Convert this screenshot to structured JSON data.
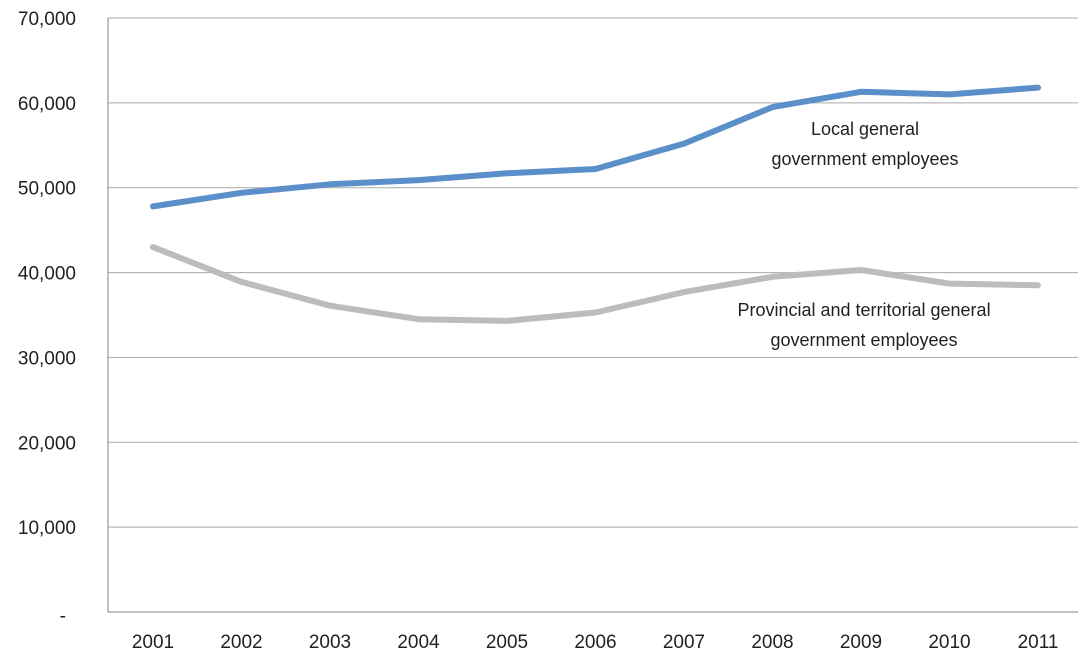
{
  "chart_data": {
    "type": "line",
    "title": "",
    "xlabel": "",
    "ylabel": "",
    "categories": [
      "2001",
      "2002",
      "2003",
      "2004",
      "2005",
      "2006",
      "2007",
      "2008",
      "2009",
      "2010",
      "2011"
    ],
    "ylim": [
      0,
      70000
    ],
    "y_ticks": [
      0,
      10000,
      20000,
      30000,
      40000,
      50000,
      60000,
      70000
    ],
    "y_tick_labels": [
      "-",
      "10,000",
      "20,000",
      "30,000",
      "40,000",
      "50,000",
      "60,000",
      "70,000"
    ],
    "grid": "horizontal",
    "legend": "none",
    "series": [
      {
        "name": "Local general government employees",
        "label_lines": [
          "Local general",
          "government employees"
        ],
        "color": "#5b8fc9",
        "values": [
          47800,
          49400,
          50400,
          50900,
          51700,
          52200,
          55200,
          59500,
          61300,
          61000,
          61800
        ]
      },
      {
        "name": "Provincial and territorial general government employees",
        "label_lines": [
          "Provincial and territorial general",
          "government employees"
        ],
        "color": "#bcbcbe",
        "values": [
          43000,
          38900,
          36100,
          34500,
          34300,
          35300,
          37700,
          39500,
          40300,
          38700,
          38500
        ]
      }
    ],
    "gridline_color": "#a7a9ac",
    "axis_color": "#808285"
  }
}
